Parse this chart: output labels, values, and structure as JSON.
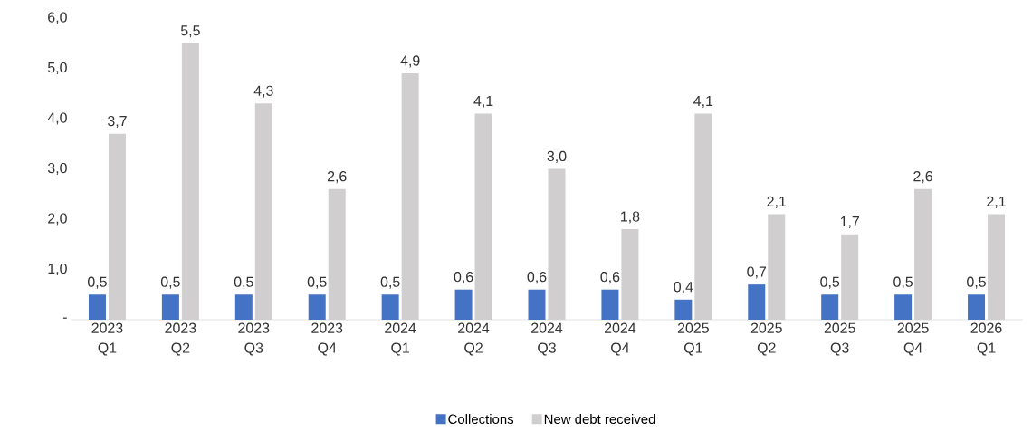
{
  "chart_data": {
    "type": "bar",
    "categories": [
      "2023 Q1",
      "2023 Q2",
      "2023 Q3",
      "2023 Q4",
      "2024 Q1",
      "2024 Q2",
      "2024 Q3",
      "2024 Q4",
      "2025 Q1",
      "2025 Q2",
      "2025 Q3",
      "2025 Q4",
      "2026 Q1"
    ],
    "series": [
      {
        "name": "Collections",
        "color": "#4472c4",
        "values": [
          0.5,
          0.5,
          0.5,
          0.5,
          0.5,
          0.6,
          0.6,
          0.6,
          0.4,
          0.7,
          0.5,
          0.5,
          0.5
        ],
        "value_labels": [
          "0,5",
          "0,5",
          "0,5",
          "0,5",
          "0,5",
          "0,6",
          "0,6",
          "0,6",
          "0,4",
          "0,7",
          "0,5",
          "0,5",
          "0,5"
        ]
      },
      {
        "name": "New debt received",
        "color": "#d0cece",
        "values": [
          3.7,
          5.5,
          4.3,
          2.6,
          4.9,
          4.1,
          3.0,
          1.8,
          4.1,
          2.1,
          1.7,
          2.6,
          2.1
        ],
        "value_labels": [
          "3,7",
          "5,5",
          "4,3",
          "2,6",
          "4,9",
          "4,1",
          "3,0",
          "1,8",
          "4,1",
          "2,1",
          "1,7",
          "2,6",
          "2,1"
        ]
      }
    ],
    "ylim": [
      0,
      6
    ],
    "yticks": [
      {
        "value": 0,
        "label": "-"
      },
      {
        "value": 1,
        "label": "1,0"
      },
      {
        "value": 2,
        "label": "2,0"
      },
      {
        "value": 3,
        "label": "3,0"
      },
      {
        "value": 4,
        "label": "4,0"
      },
      {
        "value": 5,
        "label": "5,0"
      },
      {
        "value": 6,
        "label": "6,0"
      }
    ],
    "grid": false,
    "legend": "bottom"
  }
}
